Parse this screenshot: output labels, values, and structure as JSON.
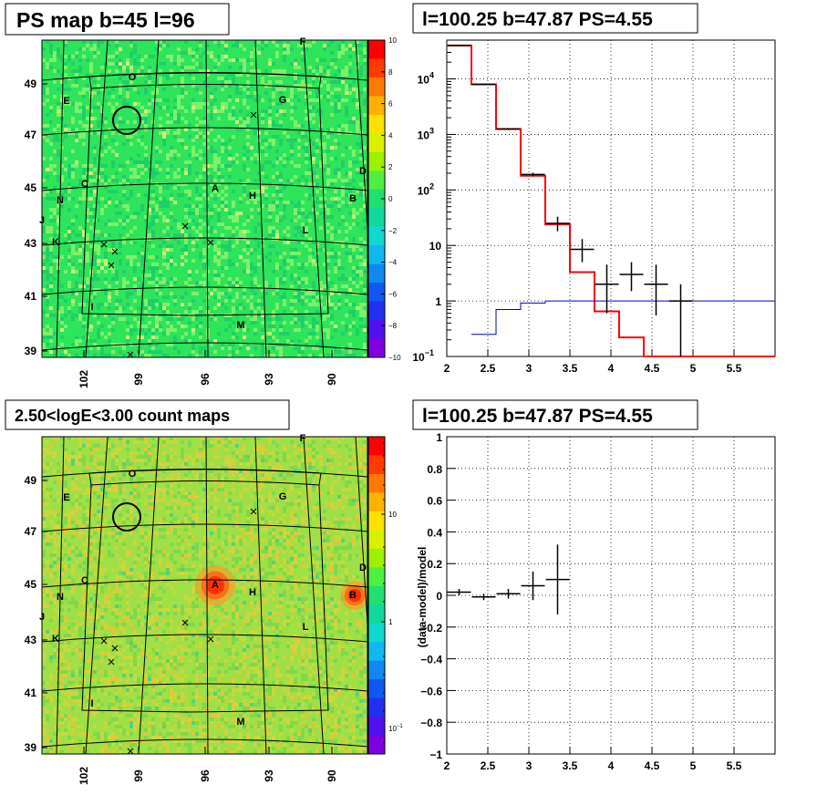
{
  "panels": {
    "ps_map": {
      "title": "PS map b=45 l=96",
      "x_ticks": [
        "102",
        "99",
        "96",
        "93",
        "90"
      ],
      "y_ticks": [
        "49",
        "47",
        "45",
        "43",
        "41",
        "39"
      ],
      "z_ticks": [
        "10",
        "8",
        "6",
        "4",
        "2",
        "0",
        "−2",
        "−4",
        "−6",
        "−8",
        "−10"
      ],
      "colors": {
        "background": "#2ee45a",
        "speckle_light": "#7ef06a",
        "speckle_dark": "#1fcf66"
      }
    },
    "count_map": {
      "title": "2.50<logE<3.00 count maps",
      "x_ticks": [
        "102",
        "99",
        "96",
        "93",
        "90"
      ],
      "y_ticks": [
        "49",
        "47",
        "45",
        "43",
        "41",
        "39"
      ],
      "z_ticks": [
        "10",
        "1"
      ],
      "z_tick_low_base": "10",
      "z_tick_low_exp": "−1",
      "colors": {
        "background": "#9ee046",
        "hot": "#ff2a00"
      }
    },
    "sources": [
      {
        "label": "O",
        "cx": 145,
        "cy": 84
      },
      {
        "label": "E",
        "cx": 73,
        "cy": 110
      },
      {
        "label": "G",
        "cx": 310,
        "cy": 109
      },
      {
        "label": "F",
        "cx": 332,
        "cy": 45
      },
      {
        "label": "D",
        "cx": 398,
        "cy": 187
      },
      {
        "label": "C",
        "cx": 93,
        "cy": 201
      },
      {
        "label": "A",
        "cx": 236,
        "cy": 206
      },
      {
        "label": "H",
        "cx": 277,
        "cy": 214
      },
      {
        "label": "B",
        "cx": 387,
        "cy": 217
      },
      {
        "label": "N",
        "cx": 66,
        "cy": 219
      },
      {
        "label": "J",
        "cx": 46,
        "cy": 241
      },
      {
        "label": "L",
        "cx": 335,
        "cy": 252
      },
      {
        "label": "K",
        "cx": 61,
        "cy": 265
      },
      {
        "label": "I",
        "cx": 101,
        "cy": 336
      },
      {
        "label": "M",
        "cx": 264,
        "cy": 356
      }
    ],
    "spectrum": {
      "title": "l=100.25 b=47.87 PS=4.55"
    },
    "residual": {
      "title": "l=100.25 b=47.87 PS=4.55",
      "ylabel": "(data-model)/model"
    }
  },
  "chart_data": [
    {
      "type": "heatmap",
      "title": "PS map b=45 l=96",
      "xlabel": "",
      "ylabel": "",
      "x_ticks": [
        102,
        99,
        96,
        93,
        90
      ],
      "y_ticks": [
        49,
        47,
        45,
        43,
        41,
        39
      ],
      "z_range": [
        -10,
        10
      ],
      "z_ticks": [
        10,
        8,
        6,
        4,
        2,
        0,
        -2,
        -4,
        -6,
        -8,
        -10
      ],
      "source_labels": [
        "O",
        "E",
        "G",
        "F",
        "D",
        "C",
        "A",
        "H",
        "B",
        "N",
        "J",
        "L",
        "K",
        "I",
        "M"
      ],
      "circle_marker": "near source O"
    },
    {
      "type": "line",
      "title": "l=100.25 b=47.87 PS=4.55",
      "xlabel": "",
      "ylabel": "",
      "xlim": [
        2,
        6
      ],
      "ylim": [
        0.1,
        50000
      ],
      "y_log": true,
      "grid": true,
      "x_ticks": [
        2,
        2.5,
        3,
        3.5,
        4,
        4.5,
        5,
        5.5
      ],
      "series": [
        {
          "kind": "step",
          "color": "#ff0000",
          "edges": [
            2,
            2.3,
            2.6,
            2.9,
            3.2,
            3.5,
            3.8,
            4.1,
            4.4,
            6
          ],
          "values": [
            40000,
            8000,
            1250,
            180,
            24,
            3.3,
            0.65,
            0.22,
            0.1
          ]
        },
        {
          "kind": "step",
          "color": "#0000cc",
          "edges": [
            2.3,
            2.6,
            2.9,
            3.2,
            3.5,
            6
          ],
          "values": [
            0.25,
            0.7,
            0.92,
            1.0,
            1.0
          ]
        },
        {
          "kind": "points",
          "color": "#000000",
          "x": [
            2.15,
            2.45,
            2.75,
            3.05,
            3.35,
            3.65,
            3.95,
            4.25,
            4.55,
            4.85
          ],
          "y": [
            40000,
            8000,
            1250,
            190,
            25,
            8.5,
            2.0,
            3.0,
            2.0,
            1.0
          ],
          "ylo": [
            39000,
            7800,
            1200,
            175,
            18,
            5.0,
            0.6,
            1.5,
            0.55,
            0.1
          ],
          "yhi": [
            41000,
            8200,
            1300,
            205,
            33,
            13,
            4.5,
            5.0,
            4.5,
            2.0
          ]
        }
      ]
    },
    {
      "type": "heatmap",
      "title": "2.50<logE<3.00 count maps",
      "xlabel": "",
      "ylabel": "",
      "x_ticks": [
        102,
        99,
        96,
        93,
        90
      ],
      "y_ticks": [
        49,
        47,
        45,
        43,
        41,
        39
      ],
      "z_scale": "log",
      "z_ticks": [
        10,
        1,
        0.1
      ],
      "hotspots": [
        "A",
        "B"
      ]
    },
    {
      "type": "scatter",
      "title": "l=100.25 b=47.87 PS=4.55",
      "xlabel": "",
      "ylabel": "(data-model)/model",
      "xlim": [
        2,
        6
      ],
      "ylim": [
        -1,
        1
      ],
      "grid": true,
      "x_ticks": [
        2,
        2.5,
        3,
        3.5,
        4,
        4.5,
        5,
        5.5
      ],
      "y_ticks": [
        1,
        0.8,
        0.6,
        0.4,
        0.2,
        0,
        -0.2,
        -0.4,
        -0.6,
        -0.8,
        -1
      ],
      "series": [
        {
          "x": [
            2.15,
            2.45,
            2.75,
            3.05,
            3.35
          ],
          "y": [
            0.02,
            -0.01,
            0.01,
            0.06,
            0.1
          ],
          "yerr": [
            0.02,
            0.02,
            0.03,
            0.09,
            0.22
          ]
        }
      ]
    }
  ]
}
